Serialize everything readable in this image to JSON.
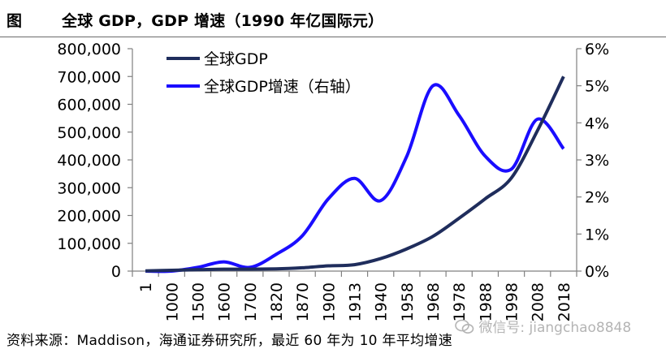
{
  "header": {
    "figure_label": "图",
    "title": "全球 GDP，GDP 增速（1990 年亿国际元）"
  },
  "footer": {
    "source": "资料来源：Maddison，海通证券研究所，最近 60 年为 10 年平均增速"
  },
  "watermark": {
    "text": "微信号: jiangchao8848",
    "icon": "wechat-icon"
  },
  "colors": {
    "gdp_line": "#1f2d5c",
    "growth_line": "#1a0dff",
    "axis": "#808080"
  },
  "chart_data": {
    "type": "line",
    "title": "",
    "categories": [
      "1",
      "1000",
      "1500",
      "1600",
      "1700",
      "1820",
      "1870",
      "1900",
      "1913",
      "1940",
      "1958",
      "1968",
      "1978",
      "1988",
      "1998",
      "2008",
      "2018"
    ],
    "y_left": {
      "ylim": [
        0,
        800000
      ],
      "ticks": [
        0,
        100000,
        200000,
        300000,
        400000,
        500000,
        600000,
        700000,
        800000
      ],
      "tick_labels": [
        "0",
        "100,000",
        "200,000",
        "300,000",
        "400,000",
        "500,000",
        "600,000",
        "700,000",
        "800,000"
      ]
    },
    "y_right": {
      "ylim": [
        0,
        6
      ],
      "ticks": [
        0,
        1,
        2,
        3,
        4,
        5,
        6
      ],
      "tick_labels": [
        "0%",
        "1%",
        "2%",
        "3%",
        "4%",
        "5%",
        "6%"
      ]
    },
    "legend_position": "top-left",
    "series": [
      {
        "name": "全球GDP",
        "axis": "left",
        "values": [
          1000,
          3000,
          5000,
          7000,
          7000,
          8000,
          12000,
          19000,
          23000,
          45000,
          80000,
          125000,
          190000,
          260000,
          335000,
          505000,
          700000
        ]
      },
      {
        "name": "全球GDP增速（右轴）",
        "axis": "right",
        "values": [
          0.0,
          0.0,
          0.1,
          0.25,
          0.1,
          0.45,
          0.95,
          1.95,
          2.5,
          1.9,
          3.1,
          5.0,
          4.2,
          3.1,
          2.75,
          4.1,
          3.3
        ]
      }
    ]
  }
}
